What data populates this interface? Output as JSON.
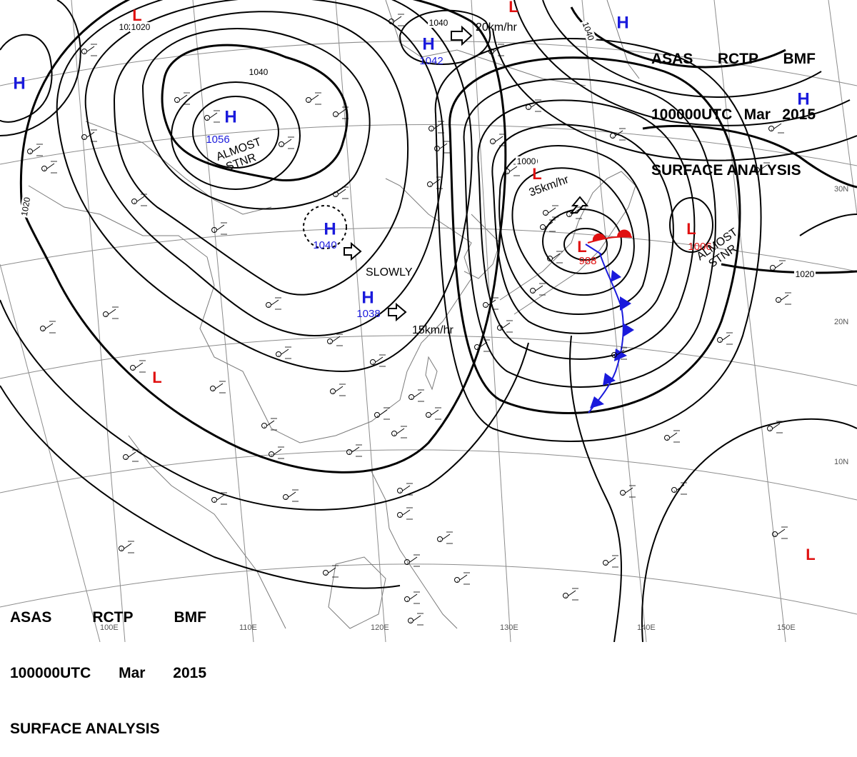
{
  "header_top": {
    "agency": "ASAS",
    "station": "RCTP",
    "code": "BMF",
    "datetime": "100000UTC",
    "month": "Mar",
    "year": "2015",
    "title": "SURFACE ANALYSIS"
  },
  "header_bottom": {
    "agency": "ASAS",
    "station": "RCTP",
    "code": "BMF",
    "datetime": "100000UTC",
    "month": "Mar",
    "year": "2015",
    "title": "SURFACE ANALYSIS"
  },
  "colors": {
    "high": "#1a1adc",
    "low": "#e01010",
    "isobar": "#000000",
    "grid": "#888888",
    "coast": "#777777",
    "cold_front": "#1a1adc",
    "warm_front": "#e01010"
  },
  "pressure_systems": [
    {
      "type": "H",
      "value": "1056"
    },
    {
      "type": "H",
      "value": "1040"
    },
    {
      "type": "H",
      "value": "1038"
    },
    {
      "type": "H",
      "value": "1042"
    },
    {
      "type": "H",
      "value": ""
    },
    {
      "type": "H",
      "value": ""
    },
    {
      "type": "H",
      "value": ""
    },
    {
      "type": "L",
      "value": "988"
    },
    {
      "type": "L",
      "value": "1006"
    },
    {
      "type": "L",
      "value": "1000"
    },
    {
      "type": "L",
      "value": "1020"
    },
    {
      "type": "L",
      "value": ""
    },
    {
      "type": "L",
      "value": ""
    },
    {
      "type": "L",
      "value": ""
    }
  ],
  "isobar_labels": [
    "1040",
    "1040",
    "1020",
    "1020",
    "1020",
    "1040",
    "1000"
  ],
  "motion_labels": [
    "20km/hr",
    "35km/hr",
    "SLOWLY",
    "15km/hr"
  ],
  "stationary_labels": [
    [
      "ALMOST",
      "STNR"
    ],
    [
      "ALMOST",
      "STNR"
    ]
  ],
  "latitude_labels": [
    "30N",
    "20N",
    "10N"
  ],
  "longitude_labels": [
    "100E",
    "110E",
    "120E",
    "130E",
    "140E",
    "150E"
  ],
  "icons": [
    "high-pressure-icon",
    "low-pressure-icon",
    "movement-arrow-icon",
    "cold-front-triangle-icon",
    "warm-front-semicircle-icon",
    "station-plot-icon"
  ]
}
